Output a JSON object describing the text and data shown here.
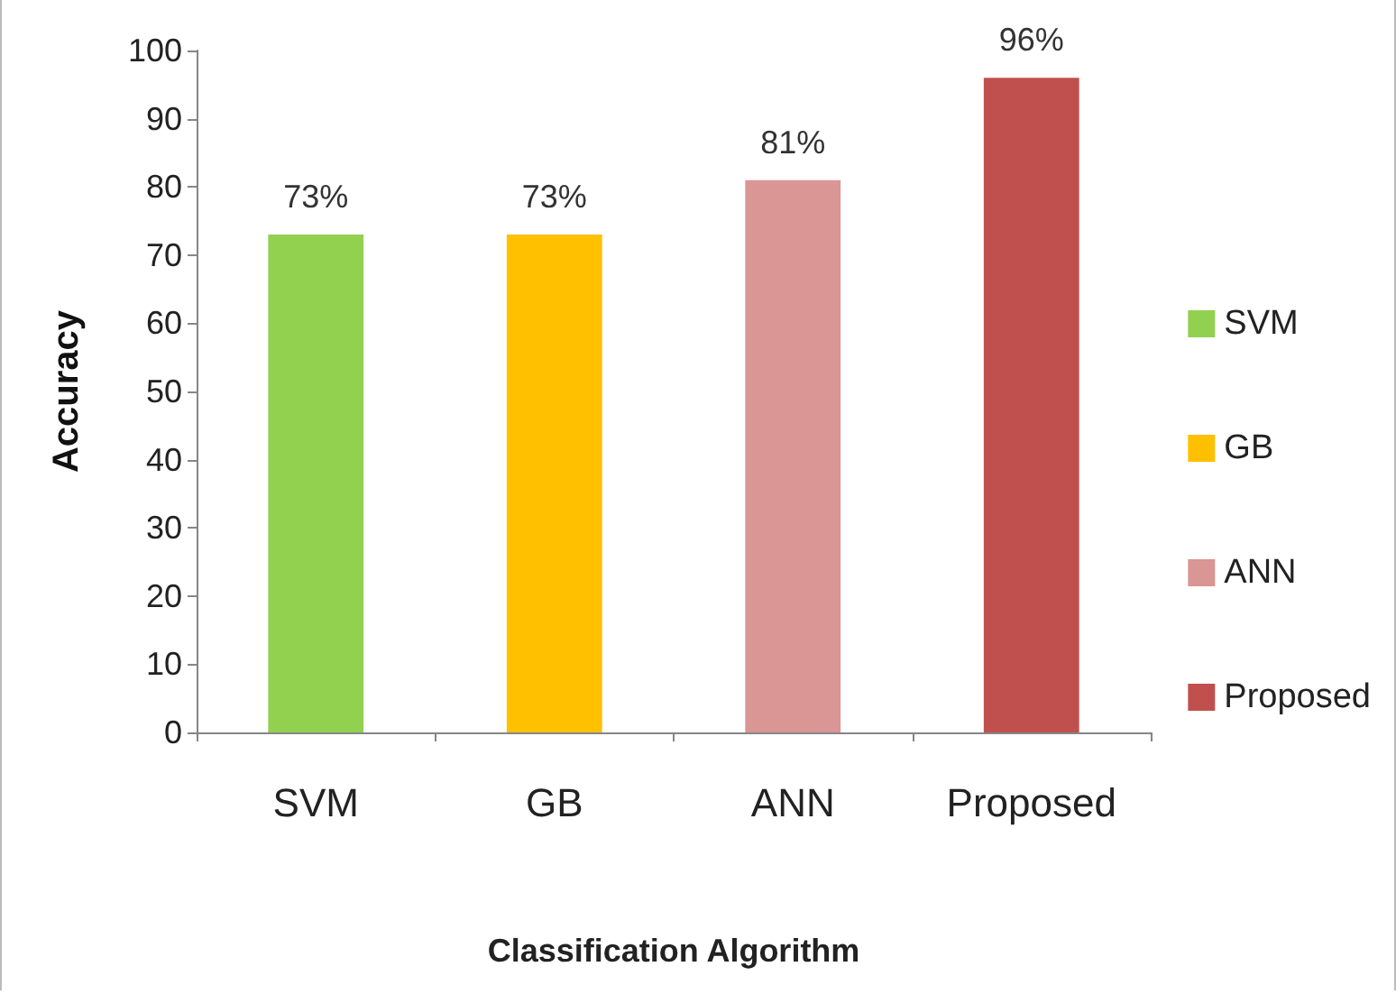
{
  "chart_data": {
    "type": "bar",
    "xlabel": "Classification Algorithm",
    "ylabel": "Accuracy",
    "categories": [
      "SVM",
      "GB",
      "ANN",
      "Proposed"
    ],
    "series": [
      {
        "name": "SVM",
        "color": "#92d050",
        "values": [
          73,
          null,
          null,
          null
        ],
        "value_labels": [
          "73%",
          null,
          null,
          null
        ]
      },
      {
        "name": "GB",
        "color": "#ffc000",
        "values": [
          null,
          73,
          null,
          null
        ],
        "value_labels": [
          null,
          "73%",
          null,
          null
        ]
      },
      {
        "name": "ANN",
        "color": "#d99694",
        "values": [
          null,
          null,
          81,
          null
        ],
        "value_labels": [
          null,
          null,
          "81%",
          null
        ]
      },
      {
        "name": "Proposed",
        "color": "#c0504d",
        "values": [
          null,
          null,
          null,
          96
        ],
        "value_labels": [
          null,
          null,
          null,
          "96%"
        ]
      }
    ],
    "ylim": [
      0,
      100
    ],
    "yticks": [
      0,
      10,
      20,
      30,
      40,
      50,
      60,
      70,
      80,
      90,
      100
    ],
    "grid": false,
    "legend": "right"
  }
}
